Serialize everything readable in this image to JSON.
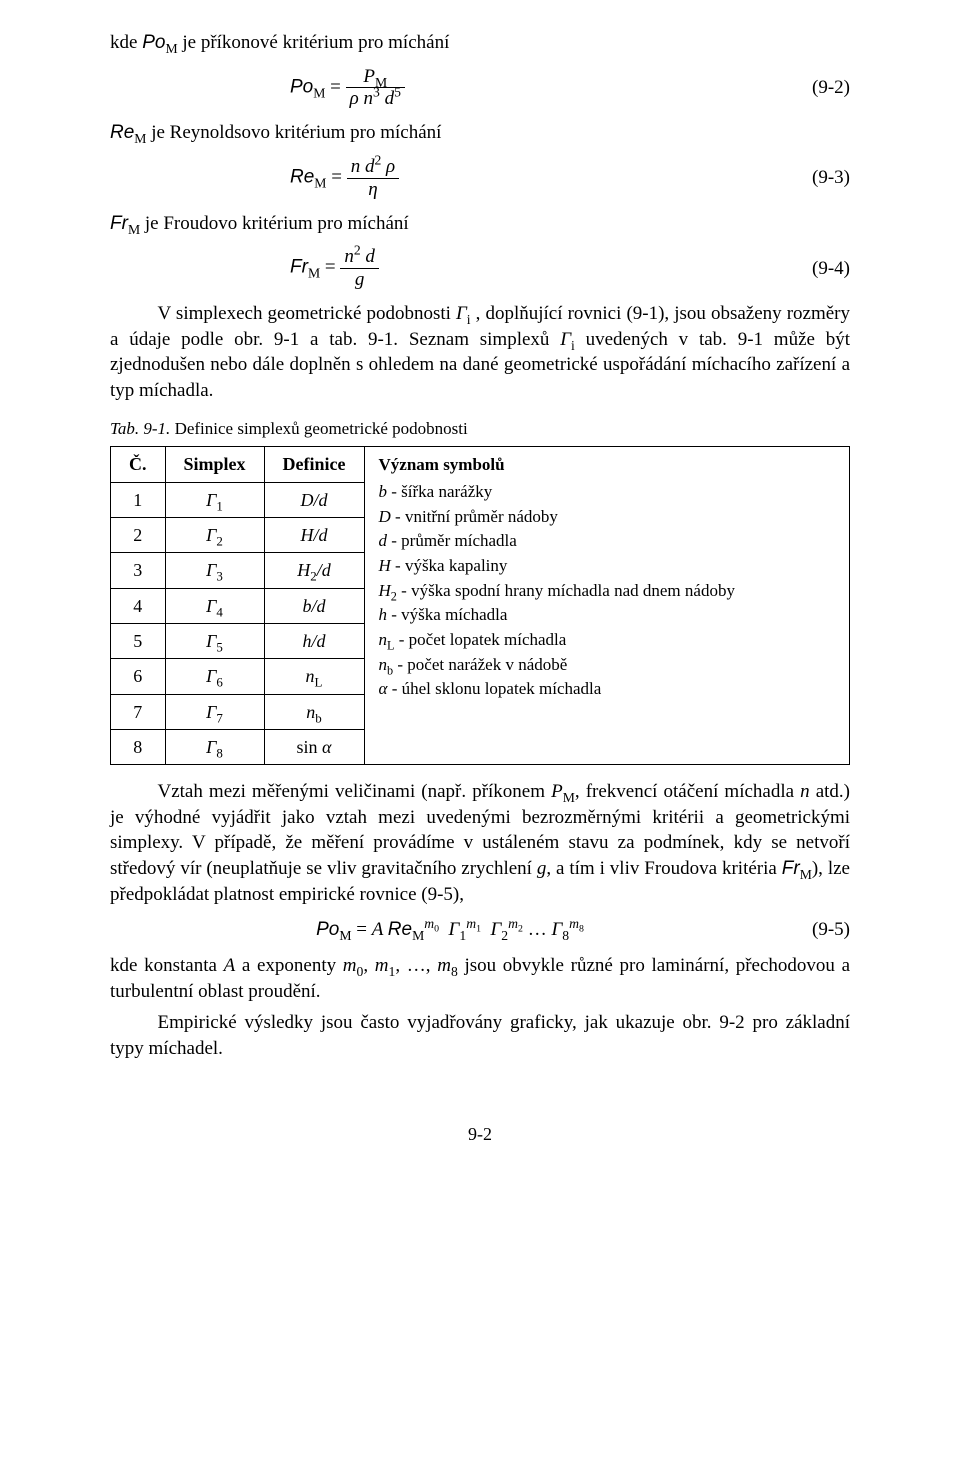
{
  "intro1": "kde ",
  "PoM_lhs_1": "Po",
  "sub_M": "M",
  "intro1_tail": " je příkonové kritérium pro míchání",
  "eq2_lhs_1": "Po",
  "eq2_eq": " = ",
  "eq2_num_P": "P",
  "eq2_den_rho": "ρ ",
  "eq2_den_n": "n",
  "eq2_den_n_exp": "3",
  "eq2_den_d": " d",
  "eq2_den_d_exp": "5",
  "eq2_num_label": "(9-2)",
  "line_Re_1": "Re",
  "line_Re_tail": " je Reynoldsovo kritérium pro míchání",
  "eq3_lhs_1": "Re",
  "eq3_eq": " = ",
  "eq3_num_n": "n ",
  "eq3_num_d": "d",
  "eq3_num_d_exp": "2",
  "eq3_num_rho": " ρ",
  "eq3_den": "η",
  "eq3_num_label": "(9-3)",
  "line_Fr_1": "Fr",
  "line_Fr_tail": " je Froudovo kritérium pro míchání",
  "eq4_lhs_1": "Fr",
  "eq4_eq": " = ",
  "eq4_num_n": "n",
  "eq4_num_n_exp": "2",
  "eq4_num_d": " d",
  "eq4_den": "g",
  "eq4_num_label": "(9-4)",
  "para2_a": "V simplexech geometrické podobnosti ",
  "para2_G": "Γ",
  "para2_i": "i",
  "para2_b": " , doplňující rovnici (9-1), jsou obsaženy rozměry a údaje podle obr. 9-1 a tab. 9-1. Seznam simplexů ",
  "para2_c": " uvedených v tab. 9-1 může být zjednodušen nebo dále doplněn s ohledem na dané geometrické uspořádání míchacího zařízení a typ míchadla.",
  "tab_caption_a": "Tab. 9-1.",
  "tab_caption_b": "  Definice simplexů geometrické podobnosti",
  "hdr_c": "Č.",
  "hdr_simplex": "Simplex",
  "hdr_def": "Definice",
  "rows": [
    {
      "n": "1",
      "g_sub": "1",
      "def_a": "D/d"
    },
    {
      "n": "2",
      "g_sub": "2",
      "def_a": "H/d"
    },
    {
      "n": "3",
      "g_sub": "3",
      "def_a": "H",
      "def_sub": "2",
      "def_b": "/d"
    },
    {
      "n": "4",
      "g_sub": "4",
      "def_a": "b/d"
    },
    {
      "n": "5",
      "g_sub": "5",
      "def_a": "h/d"
    },
    {
      "n": "6",
      "g_sub": "6",
      "def_a": "n",
      "def_sub": "L"
    },
    {
      "n": "7",
      "g_sub": "7",
      "def_a": "n",
      "def_sub": "b"
    },
    {
      "n": "8",
      "g_sub": "8",
      "def_plain": "sin ",
      "def_a": "α"
    }
  ],
  "legend_title": "Význam symbolů",
  "legend": [
    {
      "sym": "b",
      "txt": " - šířka narážky"
    },
    {
      "sym": "D",
      "txt": " - vnitřní průměr nádoby"
    },
    {
      "sym": "d",
      "txt": " - průměr míchadla"
    },
    {
      "sym": "H",
      "txt": " - výška kapaliny"
    },
    {
      "sym": "H",
      "sub": "2",
      "txt": " - výška spodní hrany míchadla nad dnem nádoby"
    },
    {
      "sym": "h",
      "txt": " - výška míchadla"
    },
    {
      "sym": "n",
      "sub": "L",
      "txt": " - počet lopatek míchadla"
    },
    {
      "sym": "n",
      "sub": "b",
      "txt": " - počet narážek v nádobě"
    },
    {
      "sym": "α",
      "txt": " - úhel sklonu lopatek míchadla"
    }
  ],
  "para3_a": "Vztah mezi měřenými veličinami (např. příkonem ",
  "para3_P": "P",
  "para3_b": ", frekvencí otáčení míchadla ",
  "para3_n": "n",
  "para3_c": " atd.) je výhodné vyjádřit jako vztah mezi uvedenými bezrozměrnými kritérii a geometrickými simplexy. V případě, že měření provádíme v ustáleném stavu za podmínek, kdy se netvoří středový vír (neuplatňuje se vliv gravitačního zrychlení ",
  "para3_g": "g",
  "para3_d": ", a tím i vliv Froudova kritéria ",
  "para3_Fr": "Fr",
  "para3_e": "), lze předpokládat platnost empirické rovnice (9-5),",
  "eq5_lhs": "Po",
  "eq5_eq": " = ",
  "eq5_A": "A ",
  "eq5_Re": "Re",
  "eq5_m0_m": "m",
  "eq5_m0_0": "0",
  "eq5_G": "Γ",
  "eq5_s1": "1",
  "eq5_m1_m": "m",
  "eq5_m1_1": "1",
  "eq5_s2": "2",
  "eq5_m2_m": "m",
  "eq5_m2_2": "2",
  "eq5_dots": " … ",
  "eq5_s8": "8",
  "eq5_m8_m": "m",
  "eq5_m8_8": "8",
  "eq5_num_label": "(9-5)",
  "para4_a": "kde konstanta ",
  "para4_A": "A",
  "para4_b": " a exponenty ",
  "para4_m0": "m",
  "para4_m0s": "0",
  "para4_c": ", ",
  "para4_m1": "m",
  "para4_m1s": "1",
  "para4_d": ", …, ",
  "para4_m8": "m",
  "para4_m8s": "8",
  "para4_e": " jsou obvykle různé pro laminární, přechodovou a turbulentní oblast proudění.",
  "para5": "Empirické výsledky jsou často vyjadřovány graficky, jak ukazuje obr. 9-2 pro základní typy míchadel.",
  "page_num": "9-2"
}
